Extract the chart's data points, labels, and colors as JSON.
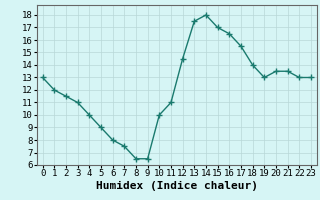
{
  "x": [
    0,
    1,
    2,
    3,
    4,
    5,
    6,
    7,
    8,
    9,
    10,
    11,
    12,
    13,
    14,
    15,
    16,
    17,
    18,
    19,
    20,
    21,
    22,
    23
  ],
  "y": [
    13,
    12,
    11.5,
    11,
    10,
    9,
    8,
    7.5,
    6.5,
    6.5,
    10,
    11,
    14.5,
    17.5,
    18,
    17,
    16.5,
    15.5,
    14,
    13,
    13.5,
    13.5,
    13,
    13
  ],
  "line_color": "#1a7a6e",
  "marker": "+",
  "marker_size": 4,
  "bg_color": "#d6f5f5",
  "grid_color": "#b8d8d8",
  "xlabel": "Humidex (Indice chaleur)",
  "xlim": [
    -0.5,
    23.5
  ],
  "ylim": [
    6,
    18.8
  ],
  "yticks": [
    6,
    7,
    8,
    9,
    10,
    11,
    12,
    13,
    14,
    15,
    16,
    17,
    18
  ],
  "xticks": [
    0,
    1,
    2,
    3,
    4,
    5,
    6,
    7,
    8,
    9,
    10,
    11,
    12,
    13,
    14,
    15,
    16,
    17,
    18,
    19,
    20,
    21,
    22,
    23
  ],
  "xlabel_fontsize": 8,
  "tick_fontsize": 6.5,
  "line_width": 1.0,
  "marker_color": "#1a7a6e"
}
